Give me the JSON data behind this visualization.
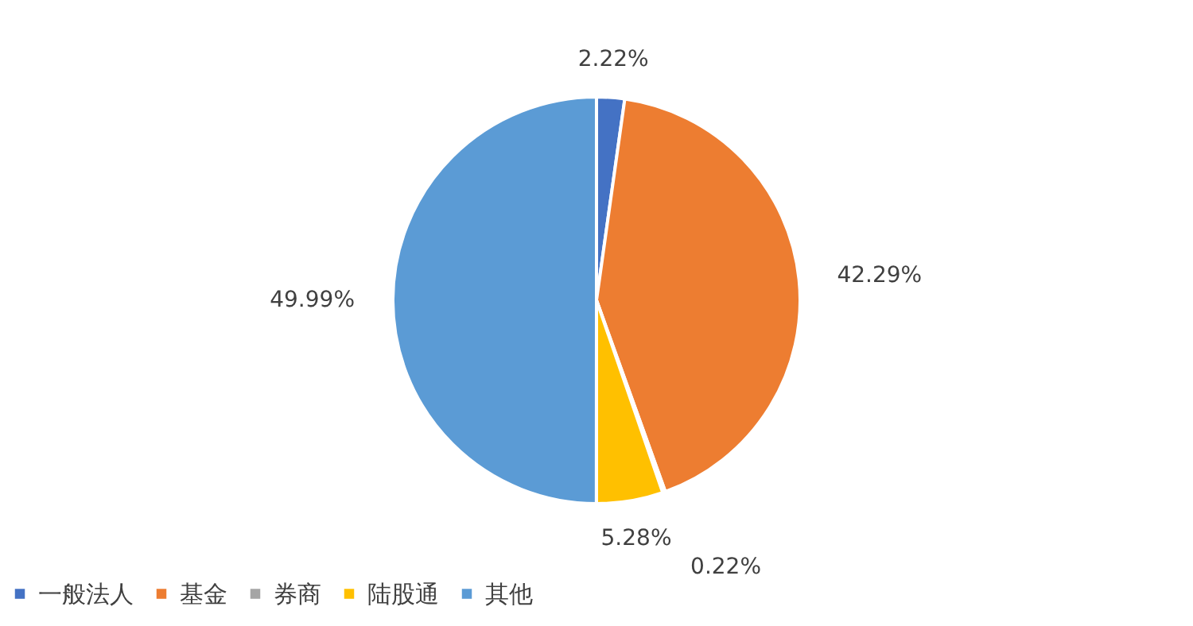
{
  "chart_data": {
    "type": "pie",
    "categories": [
      "一般法人",
      "基金",
      "券商",
      "陆股通",
      "其他"
    ],
    "values": [
      2.22,
      42.29,
      0.22,
      5.28,
      49.99
    ],
    "colors": [
      "#4472c4",
      "#ed7d31",
      "#a5a5a5",
      "#ffc000",
      "#5b9bd5"
    ],
    "value_labels": [
      "2.22%",
      "42.29%",
      "0.22%",
      "5.28%",
      "49.99%"
    ],
    "legend": "bottom"
  }
}
